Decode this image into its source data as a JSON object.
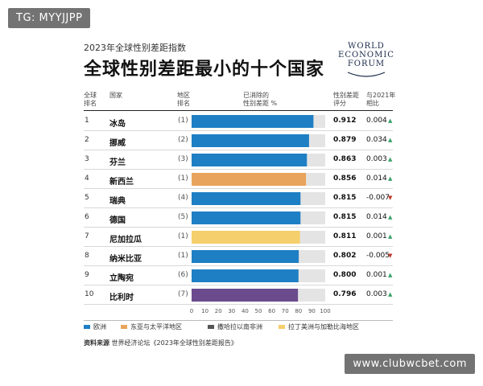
{
  "watermarks": {
    "top": "TG: MYYJJPP",
    "bottom": "www.clubwcbet.com"
  },
  "logo": {
    "line1": "WORLD",
    "line2": "ECONOMIC",
    "line3": "FORUM"
  },
  "chart_data": {
    "type": "bar",
    "subtitle": "2023年全球性别差距指数",
    "title": "全球性别差距最小的十个国家",
    "headers": {
      "global_rank": "全球\n排名",
      "country": "国家",
      "regional_rank": "地区\n排名",
      "gap_closed": "已消除的\n性别差距 %",
      "score": "性别差距\n评分",
      "change": "与2021年\n相比"
    },
    "xlim": [
      0,
      100
    ],
    "ticks": [
      0,
      10,
      20,
      30,
      40,
      50,
      60,
      70,
      80,
      90,
      100
    ],
    "regions": [
      {
        "name": "欧洲",
        "color": "#1f7fc4"
      },
      {
        "name": "东亚与太平洋地区",
        "color": "#e8a45c"
      },
      {
        "name": "撒哈拉以南非洲",
        "color": "#555555"
      },
      {
        "name": "拉丁美洲与加勒比海地区",
        "color": "#f5cf6b"
      }
    ],
    "rows": [
      {
        "rank": "1",
        "country": "冰岛",
        "regional_rank": "(1)",
        "value": 91.2,
        "score": "0.912",
        "change": "0.004",
        "dir": "up",
        "color": "#1f7fc4"
      },
      {
        "rank": "2",
        "country": "挪威",
        "regional_rank": "(2)",
        "value": 87.9,
        "score": "0.879",
        "change": "0.034",
        "dir": "up",
        "color": "#1f7fc4"
      },
      {
        "rank": "3",
        "country": "芬兰",
        "regional_rank": "(3)",
        "value": 86.3,
        "score": "0.863",
        "change": "0.003",
        "dir": "up",
        "color": "#1f7fc4"
      },
      {
        "rank": "4",
        "country": "新西兰",
        "regional_rank": "(1)",
        "value": 85.6,
        "score": "0.856",
        "change": "0.014",
        "dir": "up",
        "color": "#e8a45c"
      },
      {
        "rank": "5",
        "country": "瑞典",
        "regional_rank": "(4)",
        "value": 81.5,
        "score": "0.815",
        "change": "-0.007",
        "dir": "down",
        "color": "#1f7fc4"
      },
      {
        "rank": "6",
        "country": "德国",
        "regional_rank": "(5)",
        "value": 81.5,
        "score": "0.815",
        "change": "0.014",
        "dir": "up",
        "color": "#1f7fc4"
      },
      {
        "rank": "7",
        "country": "尼加拉瓜",
        "regional_rank": "(1)",
        "value": 81.1,
        "score": "0.811",
        "change": "0.001",
        "dir": "up",
        "color": "#f5cf6b"
      },
      {
        "rank": "8",
        "country": "纳米比亚",
        "regional_rank": "(1)",
        "value": 80.2,
        "score": "0.802",
        "change": "-0.005",
        "dir": "down",
        "color": "#1f7fc4"
      },
      {
        "rank": "9",
        "country": "立陶宛",
        "regional_rank": "(6)",
        "value": 80.0,
        "score": "0.800",
        "change": "0.001",
        "dir": "up",
        "color": "#1f7fc4"
      },
      {
        "rank": "10",
        "country": "比利时",
        "regional_rank": "(7)",
        "value": 79.6,
        "score": "0.796",
        "change": "0.003",
        "dir": "up",
        "color": "#6b4a8e"
      }
    ],
    "source_label": "资料来源",
    "source_text": "世界经济论坛《2023年全球性别差距报告》"
  }
}
